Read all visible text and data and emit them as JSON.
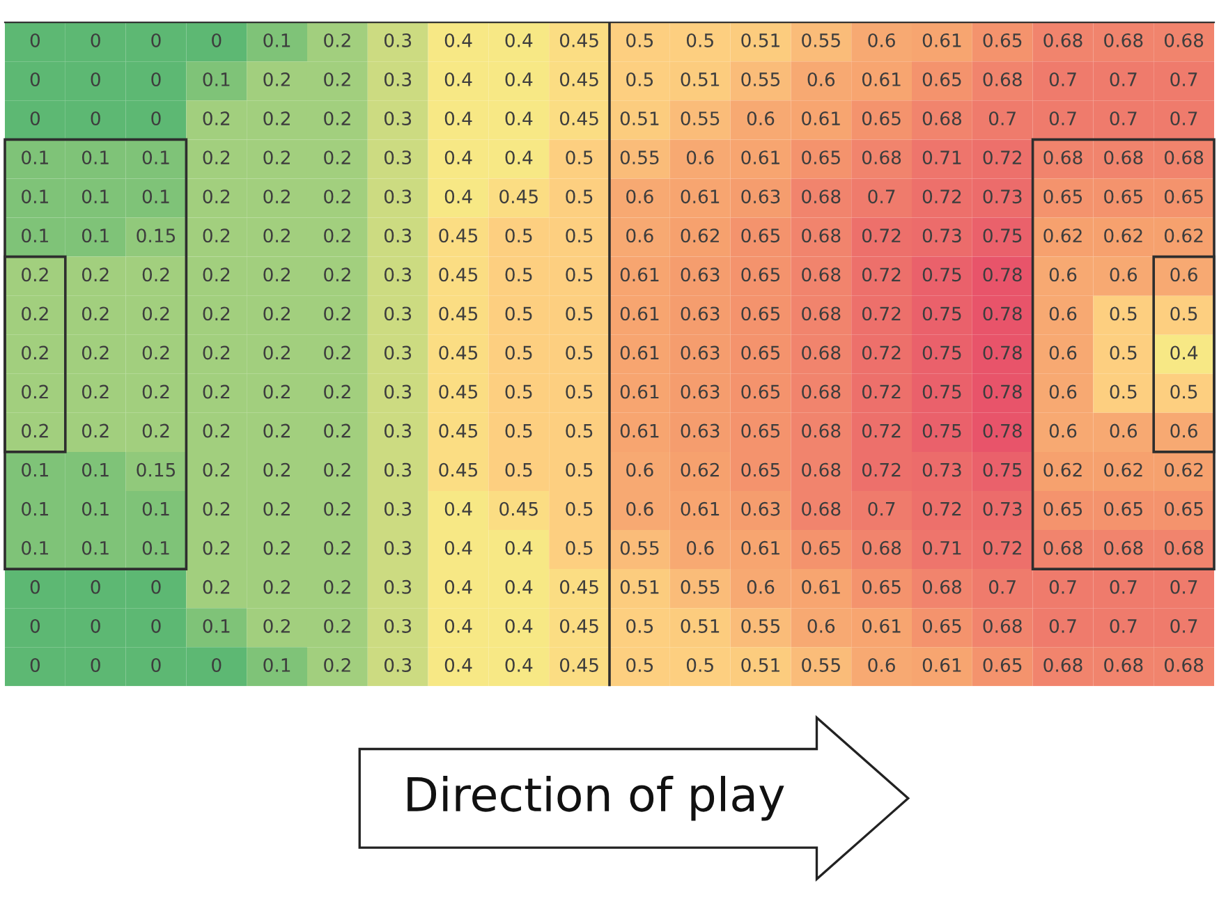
{
  "chart_data": {
    "type": "heatmap",
    "categories": [
      null,
      null,
      null,
      null,
      null,
      null,
      null,
      null,
      null,
      null,
      null,
      null,
      null,
      null,
      null,
      null,
      null,
      null,
      null,
      null
    ],
    "y_categories": [
      null,
      null,
      null,
      null,
      null,
      null,
      null,
      null,
      null,
      null,
      null,
      null,
      null,
      null,
      null,
      null,
      null
    ],
    "cells": [
      [
        0,
        0,
        0,
        0,
        0.1,
        0.2,
        0.3,
        0.4,
        0.4,
        0.45,
        0.5,
        0.5,
        0.51,
        0.55,
        0.6,
        0.61,
        0.65,
        0.68,
        0.68,
        0.68
      ],
      [
        0,
        0,
        0,
        0.1,
        0.2,
        0.2,
        0.3,
        0.4,
        0.4,
        0.45,
        0.5,
        0.51,
        0.55,
        0.6,
        0.61,
        0.65,
        0.68,
        0.7,
        0.7,
        0.7
      ],
      [
        0,
        0,
        0,
        0.2,
        0.2,
        0.2,
        0.3,
        0.4,
        0.4,
        0.45,
        0.51,
        0.55,
        0.6,
        0.61,
        0.65,
        0.68,
        0.7,
        0.7,
        0.7,
        0.7
      ],
      [
        0.1,
        0.1,
        0.1,
        0.2,
        0.2,
        0.2,
        0.3,
        0.4,
        0.4,
        0.5,
        0.55,
        0.6,
        0.61,
        0.65,
        0.68,
        0.71,
        0.72,
        0.68,
        0.68,
        0.68
      ],
      [
        0.1,
        0.1,
        0.1,
        0.2,
        0.2,
        0.2,
        0.3,
        0.4,
        0.45,
        0.5,
        0.6,
        0.61,
        0.63,
        0.68,
        0.7,
        0.72,
        0.73,
        0.65,
        0.65,
        0.65
      ],
      [
        0.1,
        0.1,
        0.15,
        0.2,
        0.2,
        0.2,
        0.3,
        0.45,
        0.5,
        0.5,
        0.6,
        0.62,
        0.65,
        0.68,
        0.72,
        0.73,
        0.75,
        0.62,
        0.62,
        0.62
      ],
      [
        0.2,
        0.2,
        0.2,
        0.2,
        0.2,
        0.2,
        0.3,
        0.45,
        0.5,
        0.5,
        0.61,
        0.63,
        0.65,
        0.68,
        0.72,
        0.75,
        0.78,
        0.6,
        0.6,
        0.6
      ],
      [
        0.2,
        0.2,
        0.2,
        0.2,
        0.2,
        0.2,
        0.3,
        0.45,
        0.5,
        0.5,
        0.61,
        0.63,
        0.65,
        0.68,
        0.72,
        0.75,
        0.78,
        0.6,
        0.5,
        0.5
      ],
      [
        0.2,
        0.2,
        0.2,
        0.2,
        0.2,
        0.2,
        0.3,
        0.45,
        0.5,
        0.5,
        0.61,
        0.63,
        0.65,
        0.68,
        0.72,
        0.75,
        0.78,
        0.6,
        0.5,
        0.4
      ],
      [
        0.2,
        0.2,
        0.2,
        0.2,
        0.2,
        0.2,
        0.3,
        0.45,
        0.5,
        0.5,
        0.61,
        0.63,
        0.65,
        0.68,
        0.72,
        0.75,
        0.78,
        0.6,
        0.5,
        0.5
      ],
      [
        0.2,
        0.2,
        0.2,
        0.2,
        0.2,
        0.2,
        0.3,
        0.45,
        0.5,
        0.5,
        0.61,
        0.63,
        0.65,
        0.68,
        0.72,
        0.75,
        0.78,
        0.6,
        0.6,
        0.6
      ],
      [
        0.1,
        0.1,
        0.15,
        0.2,
        0.2,
        0.2,
        0.3,
        0.45,
        0.5,
        0.5,
        0.6,
        0.62,
        0.65,
        0.68,
        0.72,
        0.73,
        0.75,
        0.62,
        0.62,
        0.62
      ],
      [
        0.1,
        0.1,
        0.1,
        0.2,
        0.2,
        0.2,
        0.3,
        0.4,
        0.45,
        0.5,
        0.6,
        0.61,
        0.63,
        0.68,
        0.7,
        0.72,
        0.73,
        0.65,
        0.65,
        0.65
      ],
      [
        0.1,
        0.1,
        0.1,
        0.2,
        0.2,
        0.2,
        0.3,
        0.4,
        0.4,
        0.5,
        0.55,
        0.6,
        0.61,
        0.65,
        0.68,
        0.71,
        0.72,
        0.68,
        0.68,
        0.68
      ],
      [
        0,
        0,
        0,
        0.2,
        0.2,
        0.2,
        0.3,
        0.4,
        0.4,
        0.45,
        0.51,
        0.55,
        0.6,
        0.61,
        0.65,
        0.68,
        0.7,
        0.7,
        0.7,
        0.7
      ],
      [
        0,
        0,
        0,
        0.1,
        0.2,
        0.2,
        0.3,
        0.4,
        0.4,
        0.45,
        0.5,
        0.51,
        0.55,
        0.6,
        0.61,
        0.65,
        0.68,
        0.7,
        0.7,
        0.7
      ],
      [
        0,
        0,
        0,
        0,
        0.1,
        0.2,
        0.3,
        0.4,
        0.4,
        0.45,
        0.5,
        0.5,
        0.51,
        0.55,
        0.6,
        0.61,
        0.65,
        0.68,
        0.68,
        0.68
      ]
    ],
    "data_labels": true,
    "annotations": [
      "Direction of play"
    ]
  }
}
